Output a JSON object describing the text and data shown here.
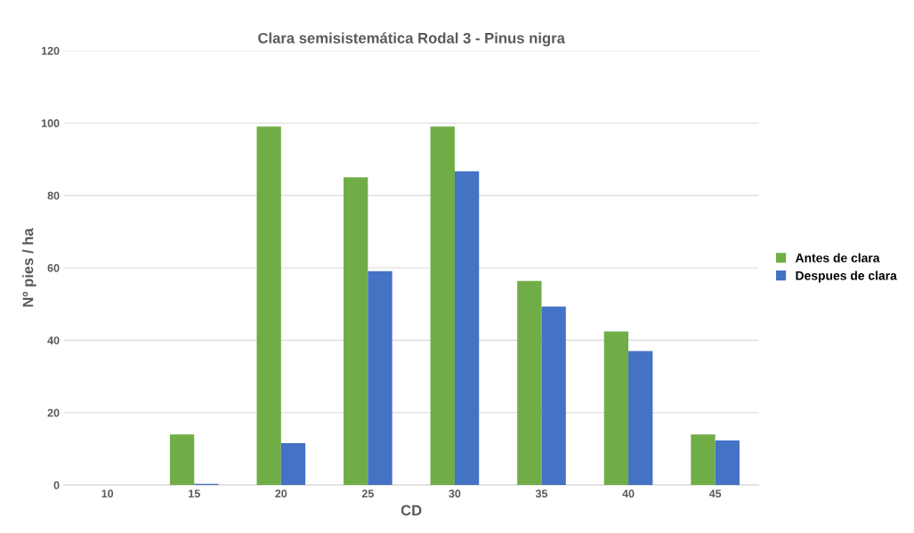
{
  "chart_data": {
    "type": "bar",
    "title": "Clara semisistemática Rodal 3 - Pinus nigra",
    "xlabel": "CD",
    "ylabel": "Nº pies / ha",
    "categories": [
      "10",
      "15",
      "20",
      "25",
      "30",
      "35",
      "40",
      "45"
    ],
    "series": [
      {
        "name": "Antes de clara",
        "color": "#70ad47",
        "values": [
          0,
          14,
          99,
          85,
          99,
          56.4,
          42.4,
          14
        ]
      },
      {
        "name": "Despues de clara",
        "color": "#4472c4",
        "values": [
          0,
          0.3,
          11.6,
          59.1,
          86.7,
          49.3,
          37,
          12.3
        ]
      }
    ],
    "ylim": [
      0,
      120
    ],
    "yticks": [
      0,
      20,
      40,
      60,
      80,
      100,
      120
    ],
    "grid": "y",
    "legend": "right"
  }
}
